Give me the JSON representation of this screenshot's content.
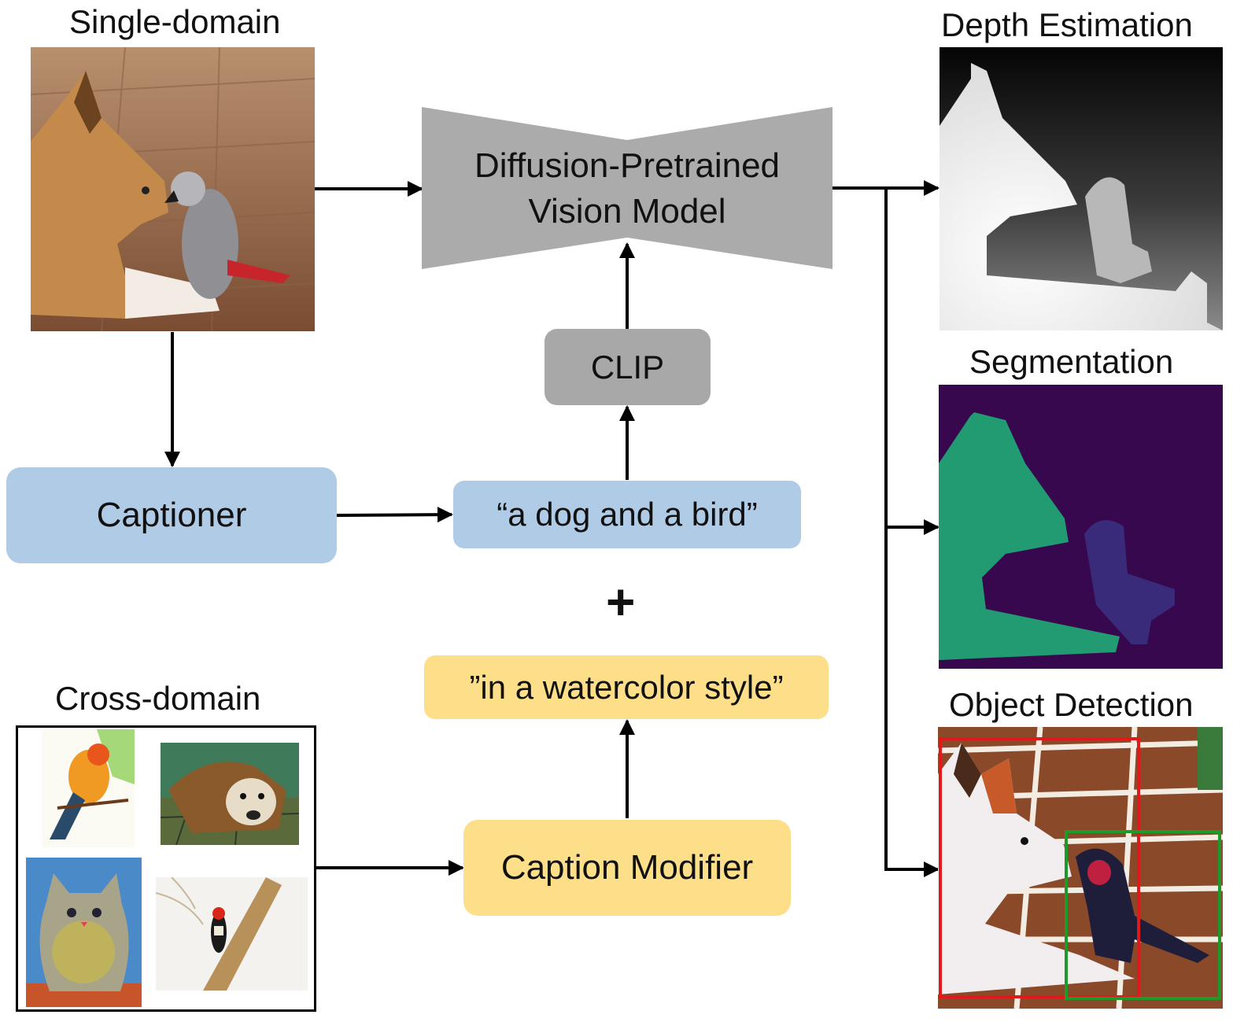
{
  "inputs": {
    "single_domain_label": "Single-domain",
    "cross_domain_label": "Cross-domain"
  },
  "model": {
    "line1": "Diffusion-Pretrained",
    "line2": "Vision Model",
    "color": "#ababab"
  },
  "clip_label": "CLIP",
  "captioner_label": "Captioner",
  "caption_text": "“a dog and a bird”",
  "plus_sign": "+",
  "modifier_text": "”in a watercolor style”",
  "caption_modifier_label": "Caption Modifier",
  "outputs": {
    "depth_label": "Depth Estimation",
    "segmentation_label": "Segmentation",
    "detection_label": "Object Detection"
  },
  "colors": {
    "blue_box": "#afcbe6",
    "yellow_box": "#fddf8a",
    "grey_box": "#a8a8a8",
    "seg_background": "#38084f",
    "seg_dog": "#229a72",
    "seg_bird": "#3a2a7a",
    "det_dog_box": "#e01a1a",
    "det_bird_box": "#1e9a2a"
  }
}
